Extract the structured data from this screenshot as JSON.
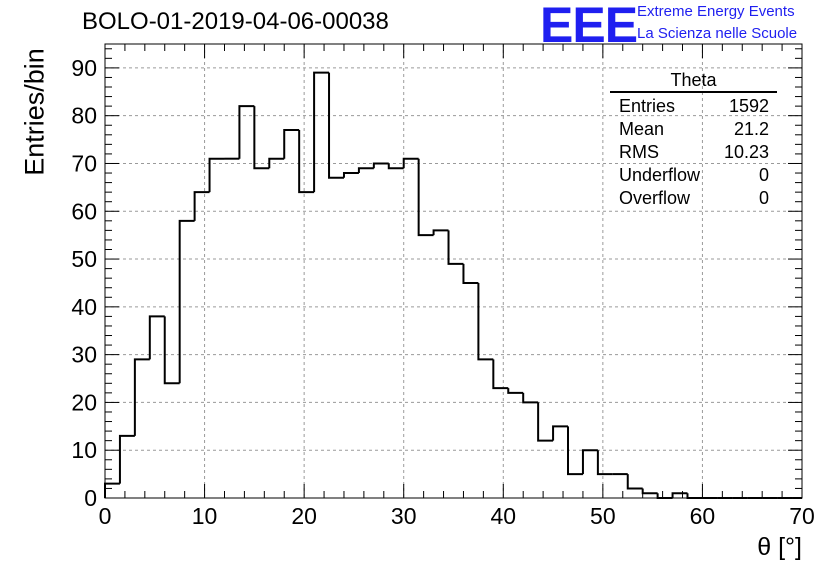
{
  "title": "BOLO-01-2019-04-06-00038",
  "logo": {
    "text": "EEE",
    "line1": "Extreme Energy Events",
    "line2": "La Scienza nelle Scuole",
    "color": "#1f1ff0"
  },
  "stats": {
    "title": "Theta",
    "rows": [
      {
        "label": "Entries",
        "value": "1592"
      },
      {
        "label": "Mean",
        "value": "21.2"
      },
      {
        "label": "RMS",
        "value": "10.23"
      },
      {
        "label": "Underflow",
        "value": "0"
      },
      {
        "label": "Overflow",
        "value": "0"
      }
    ]
  },
  "chart_data": {
    "type": "bar",
    "title": "BOLO-01-2019-04-06-00038",
    "xlabel": "θ [°]",
    "ylabel": "Entries/bin",
    "xlim": [
      0,
      70
    ],
    "ylim": [
      0,
      95
    ],
    "grid": true,
    "bin_width": 1.5,
    "x_ticks": [
      0,
      10,
      20,
      30,
      40,
      50,
      60,
      70
    ],
    "y_ticks": [
      0,
      10,
      20,
      30,
      40,
      50,
      60,
      70,
      80,
      90
    ],
    "values": [
      3,
      13,
      29,
      38,
      24,
      58,
      64,
      71,
      71,
      82,
      69,
      71,
      77,
      64,
      89,
      67,
      68,
      69,
      70,
      69,
      71,
      55,
      56,
      49,
      45,
      29,
      23,
      22,
      20,
      12,
      15,
      5,
      10,
      5,
      5,
      2,
      1,
      0,
      1,
      0,
      0,
      0,
      0,
      0,
      0,
      0,
      0
    ]
  }
}
